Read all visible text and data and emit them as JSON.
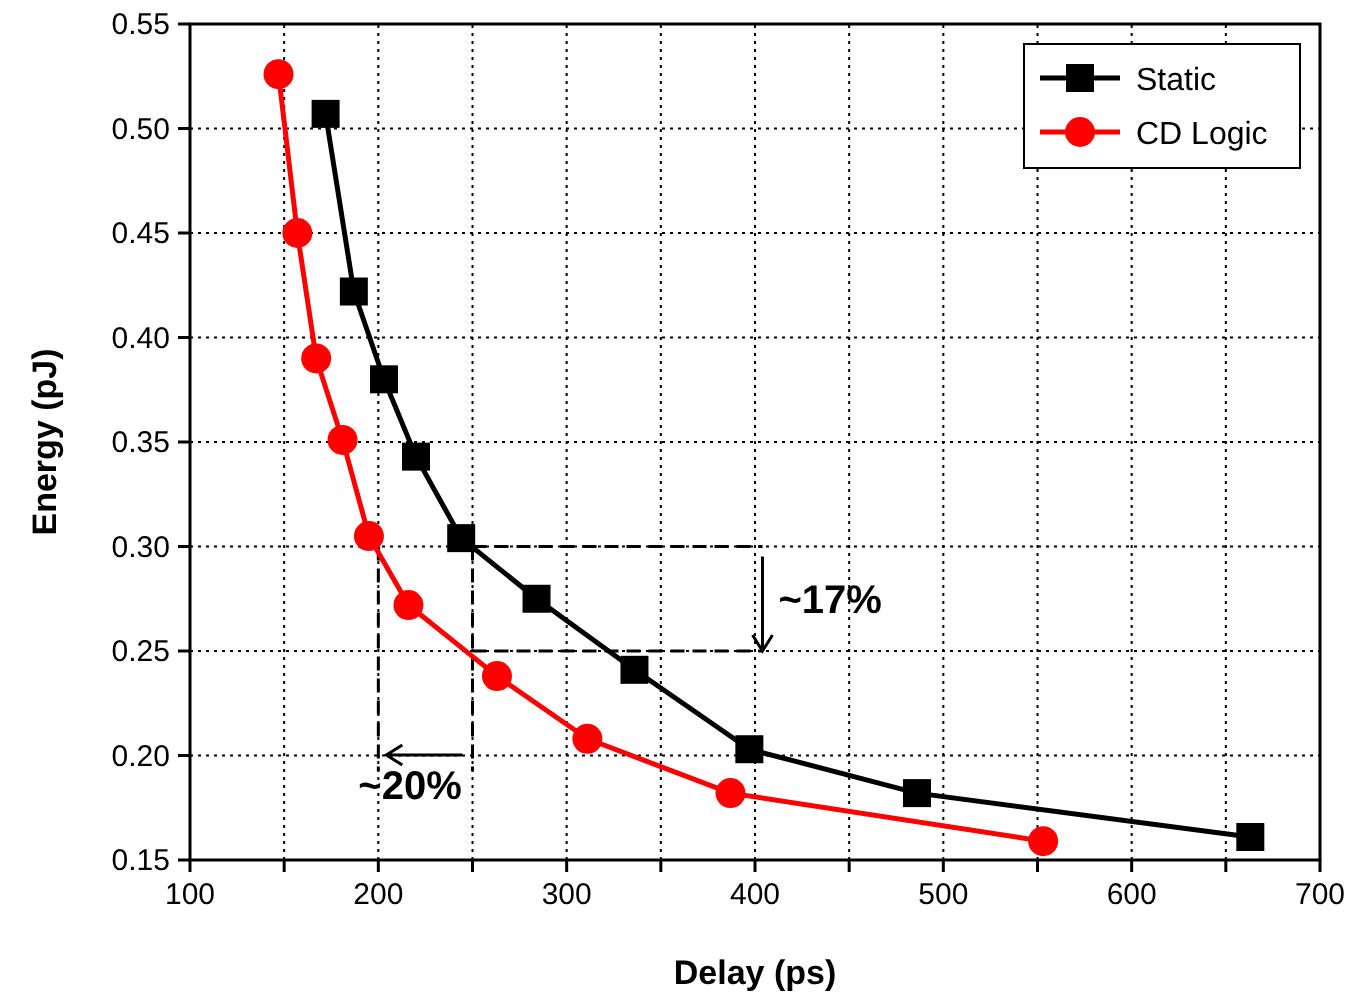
{
  "chart_data": {
    "type": "line",
    "xlabel": "Delay (ps)",
    "ylabel": "Energy (pJ)",
    "xlim": [
      100,
      700
    ],
    "xticks": [
      100,
      {
        "value": 150,
        "label": null
      },
      200,
      {
        "value": 250,
        "label": null
      },
      300,
      {
        "value": 350,
        "label": null
      },
      400,
      {
        "value": 450,
        "label": null
      },
      500,
      {
        "value": 550,
        "label": null
      },
      600,
      {
        "value": 650,
        "label": null
      },
      700
    ],
    "ylim": [
      0.15,
      0.55
    ],
    "yticks": [
      0.15,
      {
        "value": 0.2,
        "label": "0.20"
      },
      0.25,
      {
        "value": 0.3,
        "label": "0.30"
      },
      0.35,
      {
        "value": 0.4,
        "label": "0.40"
      },
      0.45,
      {
        "value": 0.5,
        "label": "0.50"
      },
      0.55
    ],
    "grid": true,
    "legend": "top right",
    "series": [
      {
        "name": "Static",
        "color": "#000000",
        "marker": "square",
        "x": [
          172,
          187,
          203,
          220,
          244,
          284,
          336,
          397,
          486,
          663
        ],
        "values": [
          0.507,
          0.422,
          0.38,
          0.343,
          0.304,
          0.275,
          0.241,
          0.203,
          0.182,
          0.161
        ]
      },
      {
        "name": "CD Logic",
        "color": "#ff0000",
        "marker": "circle",
        "x": [
          147,
          157,
          167,
          181,
          195,
          216,
          263,
          311,
          387,
          553
        ],
        "values": [
          0.526,
          0.45,
          0.39,
          0.351,
          0.305,
          0.272,
          0.238,
          0.208,
          0.182,
          0.159
        ]
      }
    ],
    "annotations": [
      {
        "text": "~17%",
        "x": 250,
        "y": 0.25
      },
      {
        "text": "~20%",
        "x": 200,
        "y": 0.3
      }
    ]
  }
}
